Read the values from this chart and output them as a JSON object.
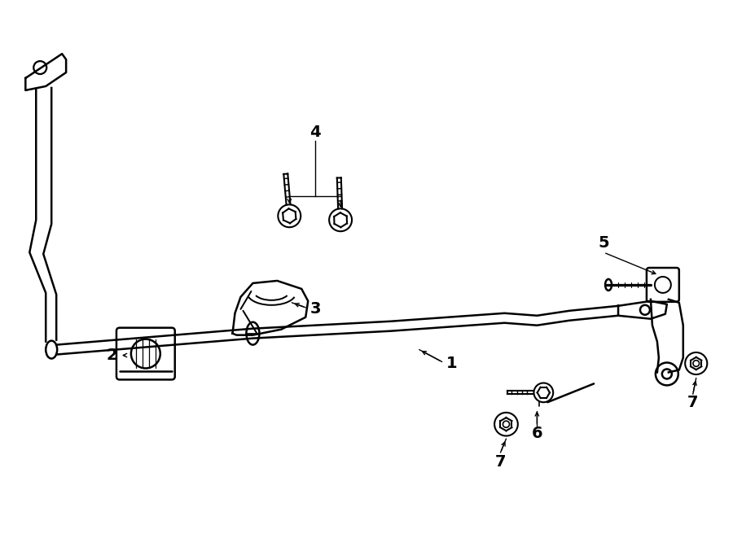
{
  "bg_color": "#ffffff",
  "line_color": "#000000",
  "lw": 1.5,
  "fig_width": 9.0,
  "fig_height": 6.61,
  "dpi": 100
}
